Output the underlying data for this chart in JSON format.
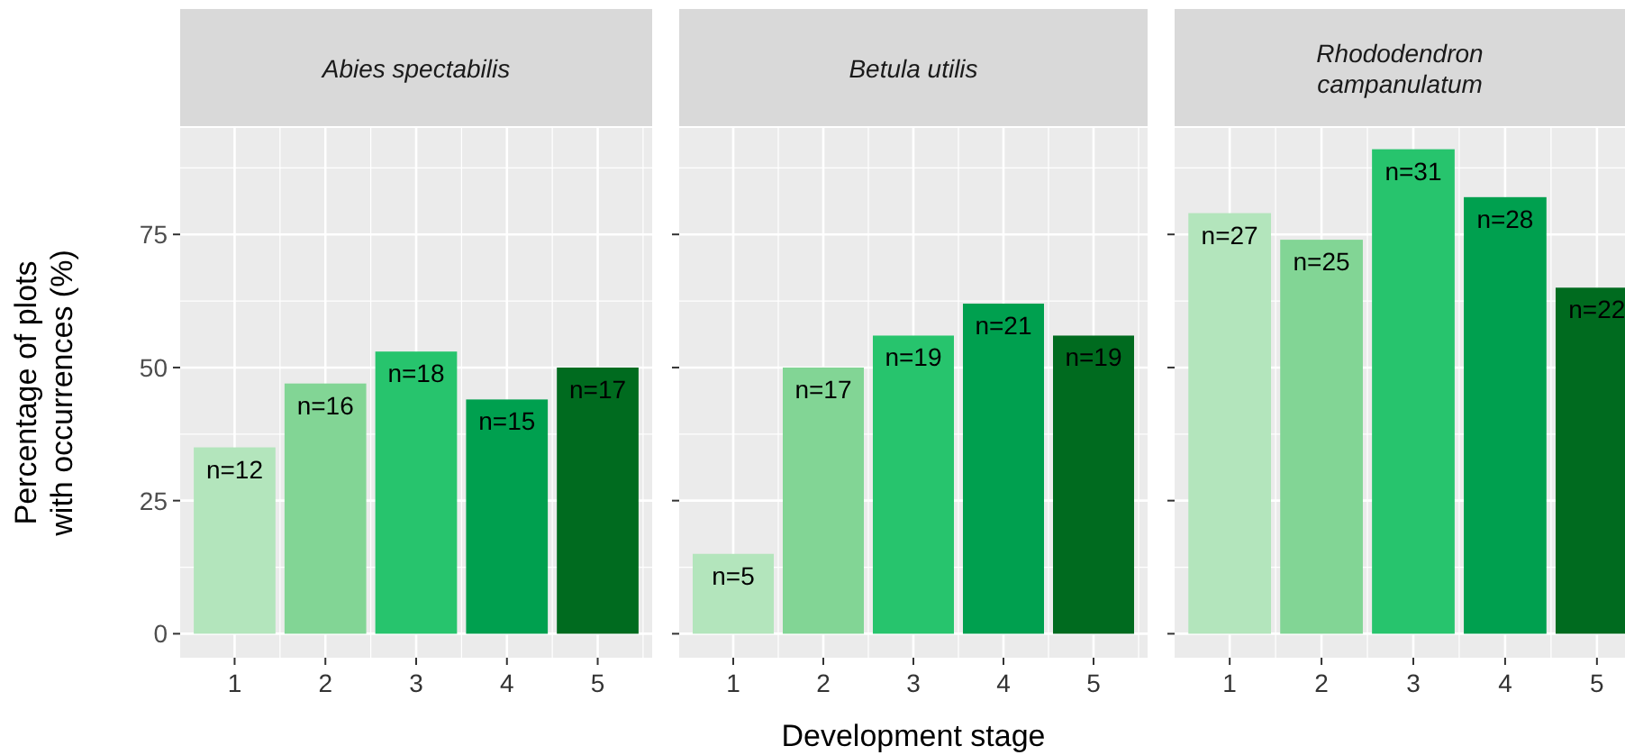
{
  "chart_data": [
    {
      "type": "bar",
      "title": "Abies spectabilis",
      "ylabel": "Percentage of plots with occurrences (%)",
      "categories": [
        "1",
        "2",
        "3",
        "4",
        "5"
      ],
      "values": [
        35,
        47,
        53,
        44,
        50
      ],
      "colors": [
        "#b3e5bc",
        "#82d595",
        "#27c46d",
        "#00a04f",
        "#006b1f"
      ],
      "annotations": [
        {
          "text": "n=12",
          "x": "1",
          "y": 35
        },
        {
          "text": "n=16",
          "x": "2",
          "y": 47
        },
        {
          "text": "n=18",
          "x": "3",
          "y": 53
        },
        {
          "text": "n=15",
          "x": "4",
          "y": 44
        },
        {
          "text": "n=17",
          "x": "5",
          "y": 50
        }
      ],
      "ylim": [
        -4.5,
        95
      ],
      "yticks": [
        0,
        25,
        50,
        75
      ],
      "grid": true
    },
    {
      "type": "bar",
      "title": "Betula utilis",
      "xlabel": "Development stage",
      "categories": [
        "1",
        "2",
        "3",
        "4",
        "5"
      ],
      "values": [
        15,
        50,
        56,
        62,
        56
      ],
      "colors": [
        "#b3e5bc",
        "#82d595",
        "#27c46d",
        "#00a04f",
        "#006b1f"
      ],
      "annotations": [
        {
          "text": "n=5",
          "x": "1",
          "y": 15
        },
        {
          "text": "n=17",
          "x": "2",
          "y": 50
        },
        {
          "text": "n=19",
          "x": "3",
          "y": 56
        },
        {
          "text": "n=21",
          "x": "4",
          "y": 62
        },
        {
          "text": "n=19",
          "x": "5",
          "y": 56
        }
      ],
      "ylim": [
        -4.5,
        95
      ],
      "yticks": [
        0,
        25,
        50,
        75
      ],
      "grid": true,
      "tick_labels": "x"
    },
    {
      "type": "bar",
      "title": "Rhododendron campanulatum",
      "categories": [
        "1",
        "2",
        "3",
        "4",
        "5"
      ],
      "values": [
        79,
        74,
        91,
        82,
        65
      ],
      "colors": [
        "#b3e5bc",
        "#82d595",
        "#27c46d",
        "#00a04f",
        "#006b1f"
      ],
      "annotations": [
        {
          "text": "n=27",
          "x": "1",
          "y": 79
        },
        {
          "text": "n=25",
          "x": "2",
          "y": 74
        },
        {
          "text": "n=31",
          "x": "3",
          "y": 91
        },
        {
          "text": "n=28",
          "x": "4",
          "y": 82
        },
        {
          "text": "n=22",
          "x": "5",
          "y": 65
        }
      ],
      "ylim": [
        -4.5,
        95
      ],
      "yticks": [
        0,
        25,
        50,
        75
      ],
      "grid": true,
      "tick_labels": "x"
    }
  ]
}
